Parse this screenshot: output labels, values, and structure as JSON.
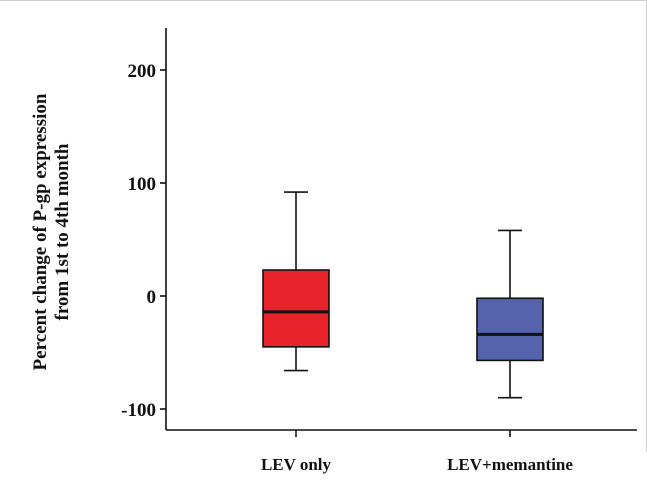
{
  "chart_data": {
    "type": "box",
    "ylabel_lines": [
      "Percent change of P-gp expression",
      "from 1st to 4th month"
    ],
    "xlabel": "",
    "ylim": [
      -115,
      235
    ],
    "yticks": [
      200,
      100,
      0,
      -100
    ],
    "ytick_labels": [
      "200",
      "100",
      "0",
      "-100"
    ],
    "categories": [
      "LEV only",
      "LEV+memantine"
    ],
    "boxes": [
      {
        "category": "LEV only",
        "min": -66,
        "q1": -45,
        "median": -14,
        "q3": 23,
        "max": 92,
        "color": "#e8232b"
      },
      {
        "category": "LEV+memantine",
        "min": -90,
        "q1": -57,
        "median": -34,
        "q3": -2,
        "max": 58,
        "color": "#5563ad"
      }
    ],
    "grid": false,
    "legend": "none"
  }
}
